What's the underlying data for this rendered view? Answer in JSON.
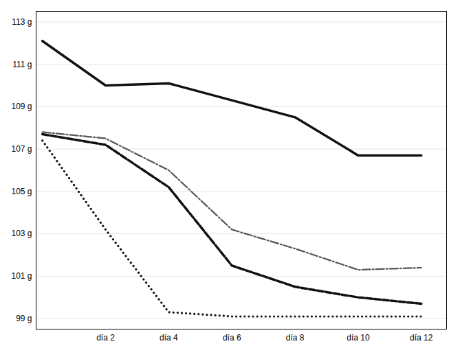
{
  "chart_data": {
    "type": "line",
    "x": [
      0,
      2,
      4,
      6,
      8,
      10,
      12
    ],
    "series": [
      {
        "color": "#111111",
        "line_style": "solid",
        "values": [
          112.1,
          110.0,
          110.1,
          109.3,
          108.5,
          106.7,
          106.7
        ]
      },
      {
        "color": "#111111",
        "line_style": "dashed",
        "values": [
          107.7,
          107.2,
          105.2,
          101.5,
          100.5,
          100.0,
          99.7
        ]
      },
      {
        "color": "#111111",
        "line_style": "dotted",
        "values": [
          107.4,
          103.2,
          99.3,
          99.1,
          99.1,
          99.1,
          99.1
        ]
      },
      {
        "color": "#555555",
        "line_style": "dashdot",
        "values": [
          107.8,
          107.5,
          106.0,
          103.2,
          102.3,
          101.3,
          101.4
        ]
      }
    ],
    "xlim": [
      -0.2,
      12.8
    ],
    "xticks": [
      {
        "value": 2,
        "label": "día 2"
      },
      {
        "value": 4,
        "label": "día 4"
      },
      {
        "value": 6,
        "label": "día 6"
      },
      {
        "value": 8,
        "label": "día 8"
      },
      {
        "value": 10,
        "label": "día 10"
      },
      {
        "value": 12,
        "label": "día 12"
      }
    ],
    "ylim": [
      98.5,
      113.5
    ],
    "yticks": [
      {
        "value": 99,
        "label": "99 g"
      },
      {
        "value": 101,
        "label": "101 g"
      },
      {
        "value": 103,
        "label": "103 g"
      },
      {
        "value": 105,
        "label": "105 g"
      },
      {
        "value": 107,
        "label": "107 g"
      },
      {
        "value": 109,
        "label": "109 g"
      },
      {
        "value": 111,
        "label": "111 g"
      },
      {
        "value": 113,
        "label": "113 g"
      }
    ],
    "grid": true
  }
}
